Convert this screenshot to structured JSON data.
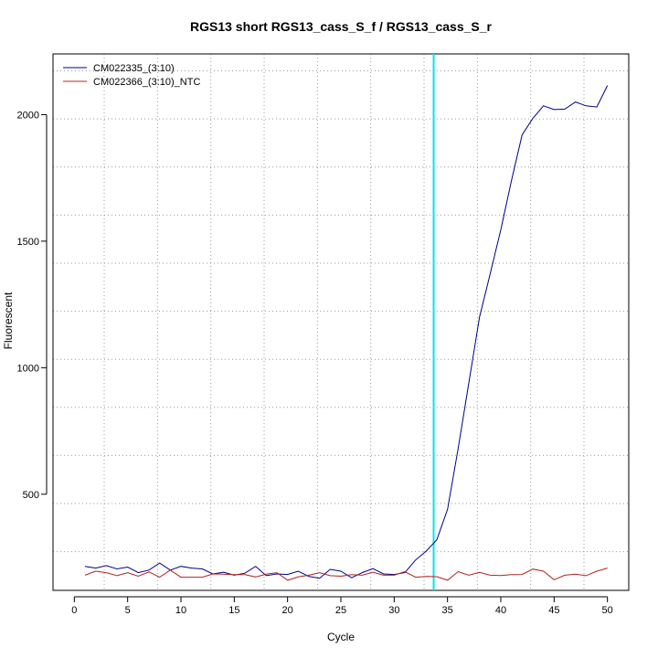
{
  "chart_data": {
    "type": "line",
    "title": "RGS13 short RGS13_cass_S_f / RGS13_cass_S_r",
    "xlabel": "Cycle",
    "ylabel": "Fluorescent",
    "xlim": [
      -2,
      52
    ],
    "ylim": [
      120,
      2240
    ],
    "xticks": [
      0,
      5,
      10,
      15,
      20,
      25,
      30,
      35,
      40,
      45,
      50
    ],
    "yticks": [
      500,
      1000,
      1500,
      2000
    ],
    "grid": true,
    "grid_x": [
      2.8,
      7.8,
      12.8,
      17.8,
      22.8,
      27.8,
      32.8,
      37.8,
      42.8,
      47.8
    ],
    "grid_y": [
      273,
      463,
      653,
      843,
      1033,
      1223,
      1413,
      1603,
      1793,
      1983,
      2173
    ],
    "legend_position": "top-left",
    "threshold": {
      "x": 33.7,
      "color": "#00e5ee"
    },
    "x": [
      1,
      2,
      3,
      4,
      5,
      6,
      7,
      8,
      9,
      10,
      11,
      12,
      13,
      14,
      15,
      16,
      17,
      18,
      19,
      20,
      21,
      22,
      23,
      24,
      25,
      26,
      27,
      28,
      29,
      30,
      31,
      32,
      33,
      34,
      35,
      36,
      37,
      38,
      39,
      40,
      41,
      42,
      43,
      44,
      45,
      46,
      47,
      48,
      49,
      50
    ],
    "series": [
      {
        "name": "CM022335_(3:10)",
        "color": "#00008b",
        "values": [
          215,
          208,
          218,
          205,
          212,
          190,
          200,
          228,
          200,
          215,
          208,
          205,
          185,
          192,
          180,
          188,
          215,
          178,
          185,
          183,
          196,
          175,
          168,
          203,
          196,
          170,
          190,
          206,
          185,
          183,
          190,
          240,
          275,
          320,
          440,
          680,
          940,
          1200,
          1370,
          1545,
          1740,
          1920,
          1985,
          2035,
          2020,
          2022,
          2050,
          2035,
          2030,
          2115
        ]
      },
      {
        "name": "CM022366_(3:10)_NTC",
        "color": "#b22222",
        "values": [
          180,
          196,
          190,
          178,
          190,
          176,
          193,
          172,
          200,
          172,
          172,
          172,
          185,
          184,
          182,
          182,
          173,
          184,
          190,
          160,
          173,
          180,
          190,
          178,
          176,
          182,
          180,
          192,
          180,
          180,
          194,
          172,
          175,
          174,
          160,
          194,
          180,
          191,
          180,
          179,
          182,
          183,
          204,
          196,
          162,
          180,
          184,
          178,
          196,
          208
        ]
      }
    ]
  }
}
